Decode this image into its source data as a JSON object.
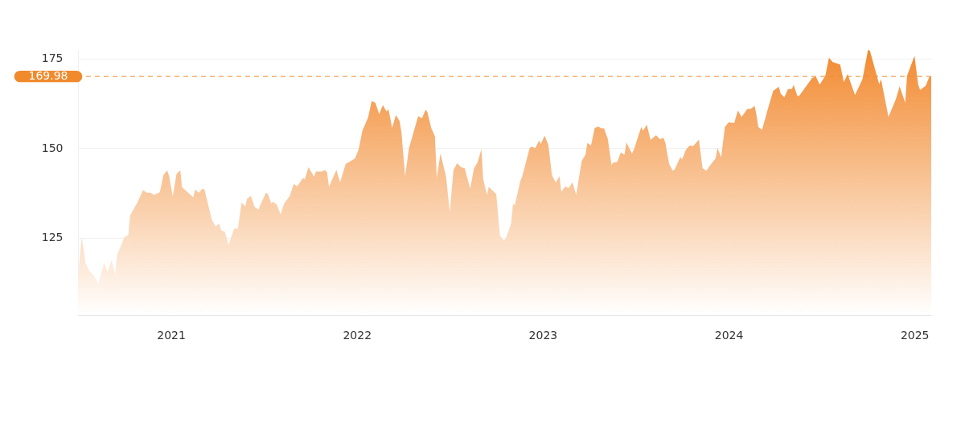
{
  "chart_data": {
    "type": "area",
    "x": [
      2021.0,
      2021.02,
      2021.04,
      2021.06,
      2021.08,
      2021.11,
      2021.14,
      2021.16,
      2021.18,
      2021.2,
      2021.21,
      2021.25,
      2021.27,
      2021.28,
      2021.32,
      2021.35,
      2021.37,
      2021.39,
      2021.41,
      2021.44,
      2021.46,
      2021.48,
      2021.49,
      2021.51,
      2021.53,
      2021.55,
      2021.56,
      2021.62,
      2021.63,
      2021.65,
      2021.67,
      2021.68,
      2021.72,
      2021.74,
      2021.76,
      2021.77,
      2021.79,
      2021.81,
      2021.84,
      2021.86,
      2021.88,
      2021.9,
      2021.91,
      2021.93,
      2021.95,
      2021.97,
      2022.01,
      2022.02,
      2022.04,
      2022.05,
      2022.07,
      2022.09,
      2022.11,
      2022.14,
      2022.16,
      2022.18,
      2022.21,
      2022.22,
      2022.24,
      2022.27,
      2022.28,
      2022.31,
      2022.33,
      2022.34,
      2022.35,
      2022.39,
      2022.41,
      2022.44,
      2022.49,
      2022.51,
      2022.53,
      2022.56,
      2022.58,
      2022.6,
      2022.62,
      2022.64,
      2022.66,
      2022.67,
      2022.69,
      2022.71,
      2022.73,
      2022.74,
      2022.76,
      2022.78,
      2022.83,
      2022.85,
      2022.87,
      2022.88,
      2022.9,
      2022.92,
      2022.93,
      2022.95,
      2022.98,
      2023.0,
      2023.02,
      2023.04,
      2023.06,
      2023.08,
      2023.11,
      2023.13,
      2023.15,
      2023.17,
      2023.18,
      2023.2,
      2023.21,
      2023.25,
      2023.27,
      2023.29,
      2023.3,
      2023.33,
      2023.34,
      2023.35,
      2023.38,
      2023.39,
      2023.43,
      2023.44,
      2023.46,
      2023.48,
      2023.49,
      2023.51,
      2023.53,
      2023.55,
      2023.57,
      2023.59,
      2023.6,
      2023.62,
      2023.64,
      2023.66,
      2023.68,
      2023.71,
      2023.73,
      2023.74,
      2023.76,
      2023.78,
      2023.8,
      2023.81,
      2023.83,
      2023.85,
      2023.87,
      2023.88,
      2023.9,
      2023.92,
      2023.94,
      2023.95,
      2023.98,
      2023.99,
      2024.03,
      2024.04,
      2024.06,
      2024.08,
      2024.11,
      2024.13,
      2024.15,
      2024.16,
      2024.18,
      2024.2,
      2024.21,
      2024.24,
      2024.25,
      2024.27,
      2024.29,
      2024.31,
      2024.34,
      2024.36,
      2024.38,
      2024.41,
      2024.43,
      2024.44,
      2024.46,
      2024.48,
      2024.5,
      2024.53,
      2024.55,
      2024.57,
      2024.6,
      2024.62,
      2024.64,
      2024.65,
      2024.66,
      2024.68,
      2024.71,
      2024.74,
      2024.77,
      2024.78,
      2024.8,
      2024.82,
      2024.84,
      2024.85,
      2024.87,
      2024.88,
      2024.95,
      2024.97,
      2024.99,
      2025.02,
      2025.04,
      2025.06,
      2025.1,
      2025.12,
      2025.14,
      2025.18,
      2025.22,
      2025.25,
      2025.26,
      2025.31,
      2025.32,
      2025.36,
      2025.4,
      2025.42,
      2025.45,
      2025.46,
      2025.5,
      2025.52,
      2025.53,
      2025.56,
      2025.58,
      2025.59
    ],
    "series": [
      {
        "color": "#f28a30",
        "values": [
          114.4,
          125.2,
          118.1,
          115.9,
          114.8,
          112.3,
          118.0,
          115.5,
          118.7,
          114.8,
          120.2,
          125.2,
          125.7,
          131.2,
          134.9,
          138.3,
          137.6,
          137.6,
          137.0,
          137.7,
          142.6,
          143.8,
          142.2,
          136.6,
          142.8,
          143.8,
          139.1,
          136.3,
          138.5,
          137.6,
          138.7,
          138.5,
          130.1,
          128.2,
          129.0,
          127.1,
          126.7,
          123.1,
          127.6,
          127.6,
          134.8,
          133.8,
          135.9,
          136.7,
          133.6,
          132.9,
          137.5,
          137.4,
          134.6,
          135.1,
          134.2,
          131.6,
          134.7,
          136.7,
          140.0,
          139.4,
          141.7,
          141.3,
          144.7,
          142.0,
          143.5,
          143.5,
          143.9,
          143.2,
          139.2,
          143.9,
          140.5,
          145.6,
          147.1,
          149.7,
          154.9,
          158.5,
          163.1,
          162.6,
          159.5,
          162.0,
          160.2,
          160.9,
          155.7,
          159.2,
          157.6,
          154.4,
          142.2,
          149.9,
          158.9,
          158.3,
          160.7,
          160.0,
          155.7,
          153.3,
          141.7,
          148.5,
          142.0,
          132.2,
          143.9,
          145.8,
          144.7,
          144.4,
          138.7,
          144.3,
          146.1,
          149.7,
          141.3,
          137.0,
          139.2,
          137.2,
          125.6,
          124.3,
          124.7,
          129.0,
          134.4,
          134.2,
          140.9,
          142.2,
          150.1,
          150.4,
          150.0,
          152.1,
          151.2,
          153.5,
          151.0,
          142.4,
          140.4,
          142.2,
          137.8,
          139.3,
          138.9,
          140.5,
          137.0,
          146.5,
          148.2,
          151.4,
          150.8,
          155.7,
          156.0,
          155.6,
          155.5,
          152.6,
          145.4,
          146.0,
          146.1,
          148.8,
          148.2,
          151.6,
          148.5,
          149.5,
          155.9,
          154.9,
          156.5,
          152.3,
          153.6,
          152.5,
          152.9,
          151.4,
          145.6,
          143.7,
          144.1,
          147.5,
          146.9,
          149.5,
          150.7,
          150.6,
          152.4,
          144.4,
          143.7,
          145.9,
          147.1,
          150.0,
          147.5,
          155.9,
          157.2,
          157.0,
          160.5,
          158.7,
          160.9,
          161.0,
          161.8,
          159.2,
          155.9,
          155.1,
          160.7,
          166.0,
          167.1,
          165.2,
          164.2,
          166.5,
          166.5,
          167.6,
          164.5,
          164.6,
          169.6,
          169.9,
          167.7,
          170.1,
          175.2,
          174.0,
          173.3,
          168.4,
          170.7,
          164.8,
          169.2,
          177.4,
          177.2,
          167.8,
          169.2,
          158.7,
          163.7,
          167.2,
          162.7,
          170.2,
          175.7,
          167.7,
          166.2,
          167.4,
          169.9,
          169.98
        ]
      }
    ],
    "xlim": [
      2021.0,
      2025.59
    ],
    "xticks": [
      {
        "value": 2021.5,
        "label": "2021"
      },
      {
        "value": 2022.5,
        "label": "2022"
      },
      {
        "value": 2023.5,
        "label": "2023"
      },
      {
        "value": 2024.5,
        "label": "2024"
      },
      {
        "value": 2025.5,
        "label": "2025"
      }
    ],
    "ylim": [
      103.5,
      177.4
    ],
    "yticks": [
      125,
      150,
      175
    ],
    "grid": "y",
    "ref_lines": [
      {
        "axis": "y",
        "value": 169.98,
        "label": "169.98",
        "color": "#f08a2c",
        "line_style": "dashed"
      }
    ]
  }
}
